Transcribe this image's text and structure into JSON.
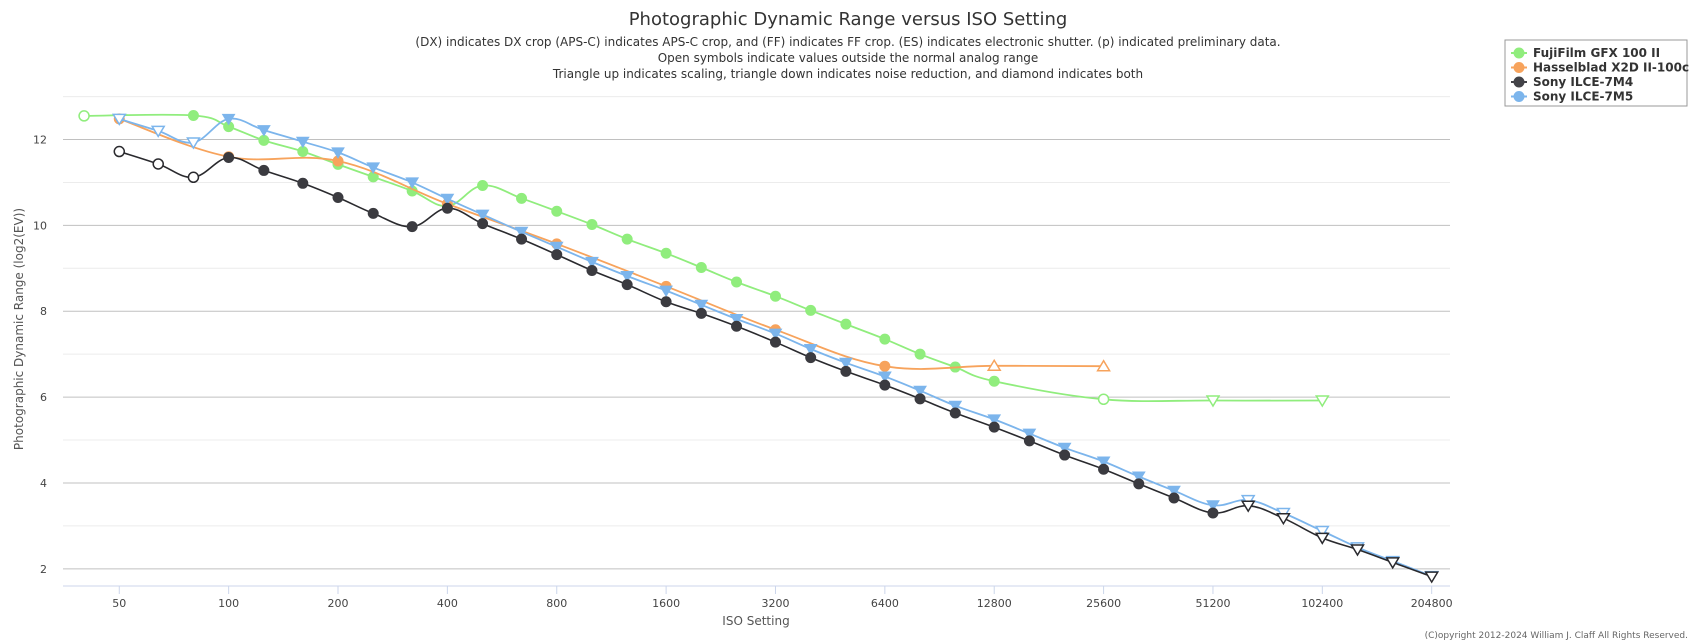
{
  "chart_data": {
    "type": "line",
    "title": "Photographic Dynamic Range versus ISO Setting",
    "subtitle_lines": [
      "(DX) indicates DX crop (APS-C) indicates APS-C crop, and (FF) indicates FF crop. (ES) indicates electronic shutter. (p) indicated preliminary data.",
      "Open symbols indicate values outside the normal analog range",
      "Triangle up indicates scaling, triangle down indicates noise reduction, and diamond indicates both"
    ],
    "xlabel": "ISO Setting",
    "ylabel": "Photographic Dynamic Range (log2(EV))",
    "xscale": "log2",
    "xlim": [
      35,
      230000
    ],
    "ylim": [
      1.6,
      13.2
    ],
    "x_ticks": [
      50,
      100,
      200,
      400,
      800,
      1600,
      3200,
      6400,
      12800,
      25600,
      51200,
      102400,
      204800
    ],
    "y_ticks": [
      2,
      4,
      6,
      8,
      10,
      12
    ],
    "grid": true,
    "legend_position": "top-right",
    "credits": "(C)opyright 2012-2024 William J. Claff All Rights Reserved.",
    "series": [
      {
        "name": "FujiFilm GFX 100 II",
        "color": "#90ed7d",
        "points": [
          {
            "x": 40,
            "y": 12.55,
            "m": "circle",
            "open": true
          },
          {
            "x": 80,
            "y": 12.56,
            "m": "circle",
            "open": false
          },
          {
            "x": 100,
            "y": 12.3,
            "m": "circle",
            "open": false
          },
          {
            "x": 125,
            "y": 11.98,
            "m": "circle",
            "open": false
          },
          {
            "x": 160,
            "y": 11.72,
            "m": "circle",
            "open": false
          },
          {
            "x": 200,
            "y": 11.42,
            "m": "circle",
            "open": false
          },
          {
            "x": 250,
            "y": 11.13,
            "m": "circle",
            "open": false
          },
          {
            "x": 320,
            "y": 10.8,
            "m": "circle",
            "open": false
          },
          {
            "x": 400,
            "y": 10.45,
            "m": "circle",
            "open": false
          },
          {
            "x": 500,
            "y": 10.93,
            "m": "circle",
            "open": false
          },
          {
            "x": 640,
            "y": 10.63,
            "m": "circle",
            "open": false
          },
          {
            "x": 800,
            "y": 10.33,
            "m": "circle",
            "open": false
          },
          {
            "x": 1000,
            "y": 10.02,
            "m": "circle",
            "open": false
          },
          {
            "x": 1250,
            "y": 9.68,
            "m": "circle",
            "open": false
          },
          {
            "x": 1600,
            "y": 9.35,
            "m": "circle",
            "open": false
          },
          {
            "x": 2000,
            "y": 9.02,
            "m": "circle",
            "open": false
          },
          {
            "x": 2500,
            "y": 8.68,
            "m": "circle",
            "open": false
          },
          {
            "x": 3200,
            "y": 8.35,
            "m": "circle",
            "open": false
          },
          {
            "x": 4000,
            "y": 8.02,
            "m": "circle",
            "open": false
          },
          {
            "x": 5000,
            "y": 7.7,
            "m": "circle",
            "open": false
          },
          {
            "x": 6400,
            "y": 7.35,
            "m": "circle",
            "open": false
          },
          {
            "x": 8000,
            "y": 7.0,
            "m": "circle",
            "open": false
          },
          {
            "x": 10000,
            "y": 6.7,
            "m": "circle",
            "open": false
          },
          {
            "x": 12800,
            "y": 6.37,
            "m": "circle",
            "open": false
          },
          {
            "x": 25600,
            "y": 5.95,
            "m": "circle",
            "open": true
          },
          {
            "x": 51200,
            "y": 5.92,
            "m": "triangle-down",
            "open": true
          },
          {
            "x": 102400,
            "y": 5.92,
            "m": "triangle-down",
            "open": true
          }
        ]
      },
      {
        "name": "Hasselblad X2D II-100c",
        "color": "#f7a35c",
        "points": [
          {
            "x": 50,
            "y": 12.48,
            "m": "circle",
            "open": false
          },
          {
            "x": 100,
            "y": 11.6,
            "m": "circle",
            "open": false
          },
          {
            "x": 200,
            "y": 11.5,
            "m": "circle",
            "open": false
          },
          {
            "x": 400,
            "y": 10.5,
            "m": "circle",
            "open": false
          },
          {
            "x": 800,
            "y": 9.57,
            "m": "circle",
            "open": false
          },
          {
            "x": 1600,
            "y": 8.58,
            "m": "circle",
            "open": false
          },
          {
            "x": 3200,
            "y": 7.57,
            "m": "circle",
            "open": false
          },
          {
            "x": 6400,
            "y": 6.72,
            "m": "circle",
            "open": false
          },
          {
            "x": 12800,
            "y": 6.73,
            "m": "triangle-up",
            "open": true
          },
          {
            "x": 25600,
            "y": 6.72,
            "m": "triangle-up",
            "open": true
          }
        ]
      },
      {
        "name": "Sony ILCE-7M4",
        "color": "#434348",
        "points": [
          {
            "x": 50,
            "y": 11.72,
            "m": "circle",
            "open": true
          },
          {
            "x": 64,
            "y": 11.43,
            "m": "circle",
            "open": true
          },
          {
            "x": 80,
            "y": 11.12,
            "m": "circle",
            "open": true
          },
          {
            "x": 100,
            "y": 11.58,
            "m": "circle",
            "open": false
          },
          {
            "x": 125,
            "y": 11.28,
            "m": "circle",
            "open": false
          },
          {
            "x": 160,
            "y": 10.98,
            "m": "circle",
            "open": false
          },
          {
            "x": 200,
            "y": 10.65,
            "m": "circle",
            "open": false
          },
          {
            "x": 250,
            "y": 10.28,
            "m": "circle",
            "open": false
          },
          {
            "x": 320,
            "y": 9.97,
            "m": "circle",
            "open": false
          },
          {
            "x": 400,
            "y": 10.4,
            "m": "circle",
            "open": false
          },
          {
            "x": 500,
            "y": 10.04,
            "m": "circle",
            "open": false
          },
          {
            "x": 640,
            "y": 9.68,
            "m": "circle",
            "open": false
          },
          {
            "x": 800,
            "y": 9.32,
            "m": "circle",
            "open": false
          },
          {
            "x": 1000,
            "y": 8.95,
            "m": "circle",
            "open": false
          },
          {
            "x": 1250,
            "y": 8.62,
            "m": "circle",
            "open": false
          },
          {
            "x": 1600,
            "y": 8.22,
            "m": "circle",
            "open": false
          },
          {
            "x": 2000,
            "y": 7.95,
            "m": "circle",
            "open": false
          },
          {
            "x": 2500,
            "y": 7.65,
            "m": "circle",
            "open": false
          },
          {
            "x": 3200,
            "y": 7.28,
            "m": "circle",
            "open": false
          },
          {
            "x": 4000,
            "y": 6.92,
            "m": "circle",
            "open": false
          },
          {
            "x": 5000,
            "y": 6.6,
            "m": "circle",
            "open": false
          },
          {
            "x": 6400,
            "y": 6.28,
            "m": "circle",
            "open": false
          },
          {
            "x": 8000,
            "y": 5.96,
            "m": "circle",
            "open": false
          },
          {
            "x": 10000,
            "y": 5.63,
            "m": "circle",
            "open": false
          },
          {
            "x": 12800,
            "y": 5.3,
            "m": "circle",
            "open": false
          },
          {
            "x": 16000,
            "y": 4.98,
            "m": "circle",
            "open": false
          },
          {
            "x": 20000,
            "y": 4.65,
            "m": "circle",
            "open": false
          },
          {
            "x": 25600,
            "y": 4.32,
            "m": "circle",
            "open": false
          },
          {
            "x": 32000,
            "y": 3.98,
            "m": "circle",
            "open": false
          },
          {
            "x": 40000,
            "y": 3.65,
            "m": "circle",
            "open": false
          },
          {
            "x": 51200,
            "y": 3.3,
            "m": "circle",
            "open": false
          },
          {
            "x": 64000,
            "y": 3.47,
            "m": "triangle-down",
            "open": true
          },
          {
            "x": 80000,
            "y": 3.18,
            "m": "triangle-down",
            "open": true
          },
          {
            "x": 102400,
            "y": 2.72,
            "m": "triangle-down",
            "open": true
          },
          {
            "x": 128000,
            "y": 2.45,
            "m": "triangle-down",
            "open": true
          },
          {
            "x": 160000,
            "y": 2.15,
            "m": "triangle-down",
            "open": true
          },
          {
            "x": 204800,
            "y": 1.82,
            "m": "triangle-down",
            "open": true
          }
        ]
      },
      {
        "name": "Sony ILCE-7M5",
        "color": "#7cb5ec",
        "points": [
          {
            "x": 50,
            "y": 12.48,
            "m": "triangle-down",
            "open": true
          },
          {
            "x": 64,
            "y": 12.2,
            "m": "triangle-down",
            "open": true
          },
          {
            "x": 80,
            "y": 11.93,
            "m": "triangle-down",
            "open": true
          },
          {
            "x": 100,
            "y": 12.48,
            "m": "triangle-down",
            "open": false
          },
          {
            "x": 125,
            "y": 12.22,
            "m": "triangle-down",
            "open": false
          },
          {
            "x": 160,
            "y": 11.95,
            "m": "triangle-down",
            "open": false
          },
          {
            "x": 200,
            "y": 11.7,
            "m": "triangle-down",
            "open": false
          },
          {
            "x": 250,
            "y": 11.35,
            "m": "triangle-down",
            "open": false
          },
          {
            "x": 320,
            "y": 11.0,
            "m": "triangle-down",
            "open": false
          },
          {
            "x": 400,
            "y": 10.62,
            "m": "triangle-down",
            "open": false
          },
          {
            "x": 500,
            "y": 10.25,
            "m": "triangle-down",
            "open": false
          },
          {
            "x": 640,
            "y": 9.85,
            "m": "triangle-down",
            "open": false
          },
          {
            "x": 800,
            "y": 9.5,
            "m": "triangle-down",
            "open": false
          },
          {
            "x": 1000,
            "y": 9.15,
            "m": "triangle-down",
            "open": false
          },
          {
            "x": 1250,
            "y": 8.82,
            "m": "triangle-down",
            "open": false
          },
          {
            "x": 1600,
            "y": 8.48,
            "m": "triangle-down",
            "open": false
          },
          {
            "x": 2000,
            "y": 8.15,
            "m": "triangle-down",
            "open": false
          },
          {
            "x": 2500,
            "y": 7.82,
            "m": "triangle-down",
            "open": false
          },
          {
            "x": 3200,
            "y": 7.48,
            "m": "triangle-down",
            "open": false
          },
          {
            "x": 4000,
            "y": 7.12,
            "m": "triangle-down",
            "open": false
          },
          {
            "x": 5000,
            "y": 6.8,
            "m": "triangle-down",
            "open": false
          },
          {
            "x": 6400,
            "y": 6.48,
            "m": "triangle-down",
            "open": false
          },
          {
            "x": 8000,
            "y": 6.15,
            "m": "triangle-down",
            "open": false
          },
          {
            "x": 10000,
            "y": 5.8,
            "m": "triangle-down",
            "open": false
          },
          {
            "x": 12800,
            "y": 5.48,
            "m": "triangle-down",
            "open": false
          },
          {
            "x": 16000,
            "y": 5.15,
            "m": "triangle-down",
            "open": false
          },
          {
            "x": 20000,
            "y": 4.82,
            "m": "triangle-down",
            "open": false
          },
          {
            "x": 25600,
            "y": 4.5,
            "m": "triangle-down",
            "open": false
          },
          {
            "x": 32000,
            "y": 4.15,
            "m": "triangle-down",
            "open": false
          },
          {
            "x": 40000,
            "y": 3.82,
            "m": "triangle-down",
            "open": false
          },
          {
            "x": 51200,
            "y": 3.48,
            "m": "triangle-down",
            "open": false
          },
          {
            "x": 64000,
            "y": 3.6,
            "m": "triangle-down",
            "open": true
          },
          {
            "x": 80000,
            "y": 3.3,
            "m": "triangle-down",
            "open": true
          },
          {
            "x": 102400,
            "y": 2.88,
            "m": "triangle-down",
            "open": true
          },
          {
            "x": 128000,
            "y": 2.5,
            "m": "triangle-down",
            "open": true
          },
          {
            "x": 160000,
            "y": 2.18,
            "m": "triangle-down",
            "open": true
          },
          {
            "x": 204800,
            "y": 1.83,
            "m": "triangle-down",
            "open": true
          }
        ]
      }
    ]
  }
}
